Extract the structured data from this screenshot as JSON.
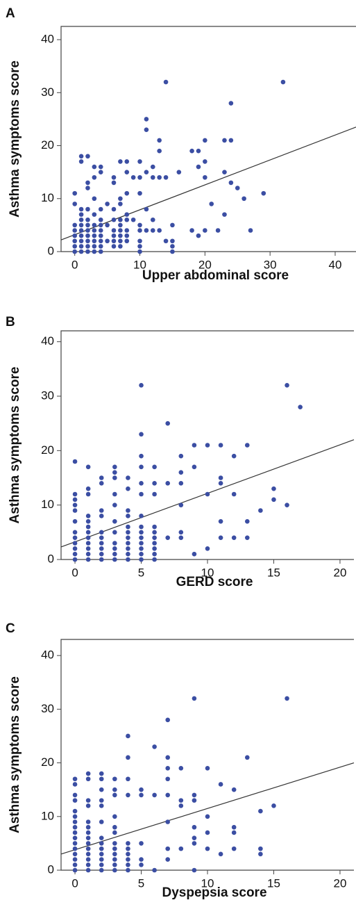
{
  "chart_data": [
    {
      "type": "scatter",
      "label": "A",
      "xlabel": "Upper abdominal score",
      "ylabel": "Asthma symptoms score",
      "color": "#3b4ea3",
      "xlim": [
        -2.1,
        43.2
      ],
      "ylim": [
        0,
        42.5
      ],
      "xticks": [
        0,
        10,
        20,
        30,
        40
      ],
      "yticks": [
        0,
        10,
        20,
        30,
        40
      ],
      "x": [
        0,
        0,
        0,
        0,
        0,
        0,
        0,
        0,
        1,
        1,
        1,
        1,
        1,
        1,
        1,
        1,
        1,
        1,
        1,
        2,
        2,
        2,
        2,
        2,
        2,
        2,
        2,
        2,
        2,
        2,
        3,
        3,
        3,
        3,
        3,
        3,
        3,
        3,
        3,
        3,
        4,
        4,
        4,
        4,
        4,
        4,
        4,
        4,
        4,
        4,
        5,
        5,
        5,
        6,
        6,
        6,
        6,
        6,
        6,
        6,
        6,
        7,
        7,
        7,
        7,
        7,
        7,
        7,
        7,
        7,
        8,
        8,
        8,
        8,
        8,
        8,
        8,
        8,
        9,
        9,
        10,
        10,
        10,
        10,
        10,
        10,
        10,
        10,
        11,
        11,
        11,
        11,
        11,
        12,
        12,
        12,
        12,
        13,
        13,
        13,
        13,
        14,
        14,
        14,
        15,
        15,
        15,
        15,
        16,
        18,
        18,
        19,
        19,
        19,
        20,
        20,
        20,
        20,
        21,
        22,
        23,
        23,
        23,
        24,
        24,
        24,
        25,
        26,
        27,
        29,
        32
      ],
      "values": [
        0,
        1,
        2,
        3,
        4,
        5,
        9,
        11,
        0,
        1,
        2,
        3,
        4,
        5,
        6,
        7,
        8,
        17,
        18,
        0,
        1,
        2,
        3,
        4,
        5,
        6,
        8,
        12,
        13,
        18,
        0,
        1,
        2,
        3,
        4,
        5,
        7,
        10,
        14,
        16,
        0,
        1,
        2,
        3,
        4,
        5,
        6,
        8,
        15,
        16,
        2,
        5,
        9,
        1,
        2,
        3,
        4,
        6,
        8,
        13,
        14,
        1,
        2,
        3,
        4,
        5,
        6,
        9,
        10,
        17,
        2,
        3,
        4,
        6,
        7,
        11,
        15,
        17,
        6,
        14,
        0,
        1,
        2,
        4,
        5,
        11,
        14,
        17,
        4,
        8,
        15,
        23,
        25,
        4,
        6,
        14,
        16,
        4,
        14,
        19,
        21,
        2,
        14,
        32,
        0,
        1,
        2,
        5,
        15,
        4,
        19,
        3,
        16,
        19,
        4,
        14,
        17,
        21,
        9,
        4,
        7,
        15,
        21,
        13,
        21,
        28,
        12,
        10,
        4,
        11,
        32
      ],
      "fit": {
        "color": "#333333",
        "x": [
          -2.1,
          43.2
        ],
        "values": [
          2.2,
          23.5
        ]
      }
    },
    {
      "type": "scatter",
      "label": "B",
      "xlabel": "GERD score",
      "ylabel": "Asthma symptoms score",
      "color": "#3b4ea3",
      "xlim": [
        -1.05,
        21.05
      ],
      "ylim": [
        0,
        42
      ],
      "xticks": [
        0,
        5,
        10,
        15,
        20
      ],
      "yticks": [
        0,
        10,
        20,
        30,
        40
      ],
      "x": [
        0,
        0,
        0,
        0,
        0,
        0,
        0,
        0,
        0,
        0,
        0,
        0,
        1,
        1,
        1,
        1,
        1,
        1,
        1,
        1,
        1,
        1,
        1,
        1,
        2,
        2,
        2,
        2,
        2,
        2,
        2,
        2,
        2,
        2,
        3,
        3,
        3,
        3,
        3,
        3,
        3,
        3,
        3,
        3,
        3,
        4,
        4,
        4,
        4,
        4,
        4,
        4,
        4,
        4,
        4,
        4,
        5,
        5,
        5,
        5,
        5,
        5,
        5,
        5,
        5,
        5,
        5,
        5,
        5,
        5,
        6,
        6,
        6,
        6,
        6,
        6,
        6,
        6,
        6,
        6,
        7,
        7,
        7,
        8,
        8,
        8,
        8,
        8,
        8,
        9,
        9,
        9,
        10,
        10,
        10,
        11,
        11,
        11,
        11,
        11,
        12,
        12,
        12,
        13,
        13,
        13,
        14,
        15,
        15,
        16,
        16,
        17
      ],
      "values": [
        0,
        1,
        2,
        3,
        4,
        5,
        7,
        9,
        10,
        11,
        12,
        18,
        0,
        1,
        2,
        3,
        4,
        5,
        6,
        7,
        8,
        12,
        13,
        17,
        0,
        1,
        2,
        3,
        4,
        5,
        8,
        9,
        14,
        15,
        0,
        1,
        2,
        3,
        5,
        7,
        10,
        12,
        15,
        16,
        17,
        0,
        1,
        2,
        3,
        4,
        5,
        6,
        8,
        9,
        13,
        15,
        0,
        1,
        2,
        3,
        4,
        5,
        6,
        8,
        12,
        14,
        17,
        19,
        23,
        32,
        0,
        1,
        2,
        3,
        4,
        5,
        6,
        12,
        14,
        17,
        4,
        14,
        25,
        4,
        5,
        10,
        14,
        16,
        19,
        1,
        17,
        21,
        2,
        12,
        21,
        4,
        7,
        14,
        15,
        21,
        4,
        12,
        19,
        4,
        7,
        21,
        9,
        11,
        13,
        10,
        32,
        28
      ],
      "fit": {
        "color": "#333333",
        "x": [
          -1.05,
          21.05
        ],
        "values": [
          2.3,
          22
        ]
      }
    },
    {
      "type": "scatter",
      "label": "C",
      "xlabel": "Dyspepsia score",
      "ylabel": "Asthma symptoms score",
      "color": "#3b4ea3",
      "xlim": [
        -1.05,
        21.05
      ],
      "ylim": [
        0,
        43
      ],
      "xticks": [
        0,
        5,
        10,
        15,
        20
      ],
      "yticks": [
        0,
        10,
        20,
        30,
        40
      ],
      "x": [
        0,
        0,
        0,
        0,
        0,
        0,
        0,
        0,
        0,
        0,
        0,
        0,
        0,
        0,
        0,
        0,
        1,
        1,
        1,
        1,
        1,
        1,
        1,
        1,
        1,
        1,
        1,
        1,
        1,
        1,
        2,
        2,
        2,
        2,
        2,
        2,
        2,
        2,
        2,
        2,
        2,
        2,
        2,
        3,
        3,
        3,
        3,
        3,
        3,
        3,
        3,
        3,
        3,
        3,
        3,
        4,
        4,
        4,
        4,
        4,
        4,
        4,
        4,
        4,
        4,
        5,
        5,
        5,
        5,
        5,
        6,
        6,
        6,
        7,
        7,
        7,
        7,
        7,
        7,
        7,
        7,
        8,
        8,
        8,
        8,
        9,
        9,
        9,
        9,
        9,
        9,
        9,
        10,
        10,
        10,
        10,
        11,
        11,
        12,
        12,
        12,
        12,
        13,
        14,
        14,
        14,
        15,
        16
      ],
      "values": [
        0,
        1,
        2,
        3,
        4,
        5,
        6,
        7,
        8,
        9,
        10,
        11,
        13,
        14,
        16,
        17,
        0,
        1,
        2,
        3,
        4,
        5,
        6,
        7,
        8,
        9,
        12,
        13,
        17,
        18,
        0,
        1,
        2,
        3,
        4,
        5,
        6,
        9,
        12,
        13,
        15,
        17,
        18,
        0,
        1,
        2,
        3,
        4,
        5,
        7,
        8,
        10,
        14,
        15,
        17,
        0,
        1,
        2,
        3,
        4,
        5,
        14,
        17,
        21,
        25,
        1,
        2,
        5,
        14,
        15,
        0,
        14,
        23,
        2,
        4,
        9,
        14,
        17,
        19,
        21,
        28,
        4,
        12,
        13,
        19,
        0,
        5,
        6,
        8,
        13,
        14,
        32,
        4,
        7,
        10,
        19,
        3,
        16,
        4,
        7,
        8,
        15,
        21,
        3,
        4,
        11,
        12,
        32
      ],
      "fit": {
        "color": "#333333",
        "x": [
          -1.05,
          21.05
        ],
        "values": [
          3,
          20
        ]
      }
    }
  ]
}
